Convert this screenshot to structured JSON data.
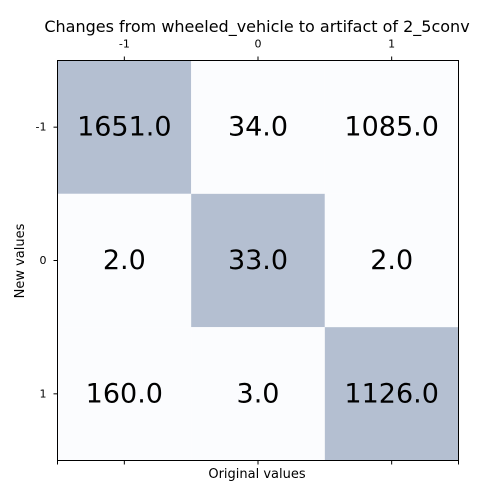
{
  "chart_data": {
    "type": "heatmap",
    "title": "Changes from wheeled_vehicle to artifact of 2_5conv",
    "xlabel": "Original values",
    "ylabel": "New values",
    "x_tick_labels": [
      "-1",
      "0",
      "1"
    ],
    "y_tick_labels": [
      "-1",
      "0",
      "1"
    ],
    "x_ticks_position": "top",
    "grid": false,
    "values": [
      [
        1651.0,
        34.0,
        1085.0
      ],
      [
        2.0,
        33.0,
        2.0
      ],
      [
        160.0,
        3.0,
        1126.0
      ]
    ],
    "cell_labels": [
      [
        "1651.0",
        "34.0",
        "1085.0"
      ],
      [
        "2.0",
        "33.0",
        "2.0"
      ],
      [
        "160.0",
        "3.0",
        "1126.0"
      ]
    ],
    "colors": {
      "diagonal_cell": "#b4bfd1",
      "other_cell": "#fbfcfe",
      "axis": "#000000"
    }
  }
}
